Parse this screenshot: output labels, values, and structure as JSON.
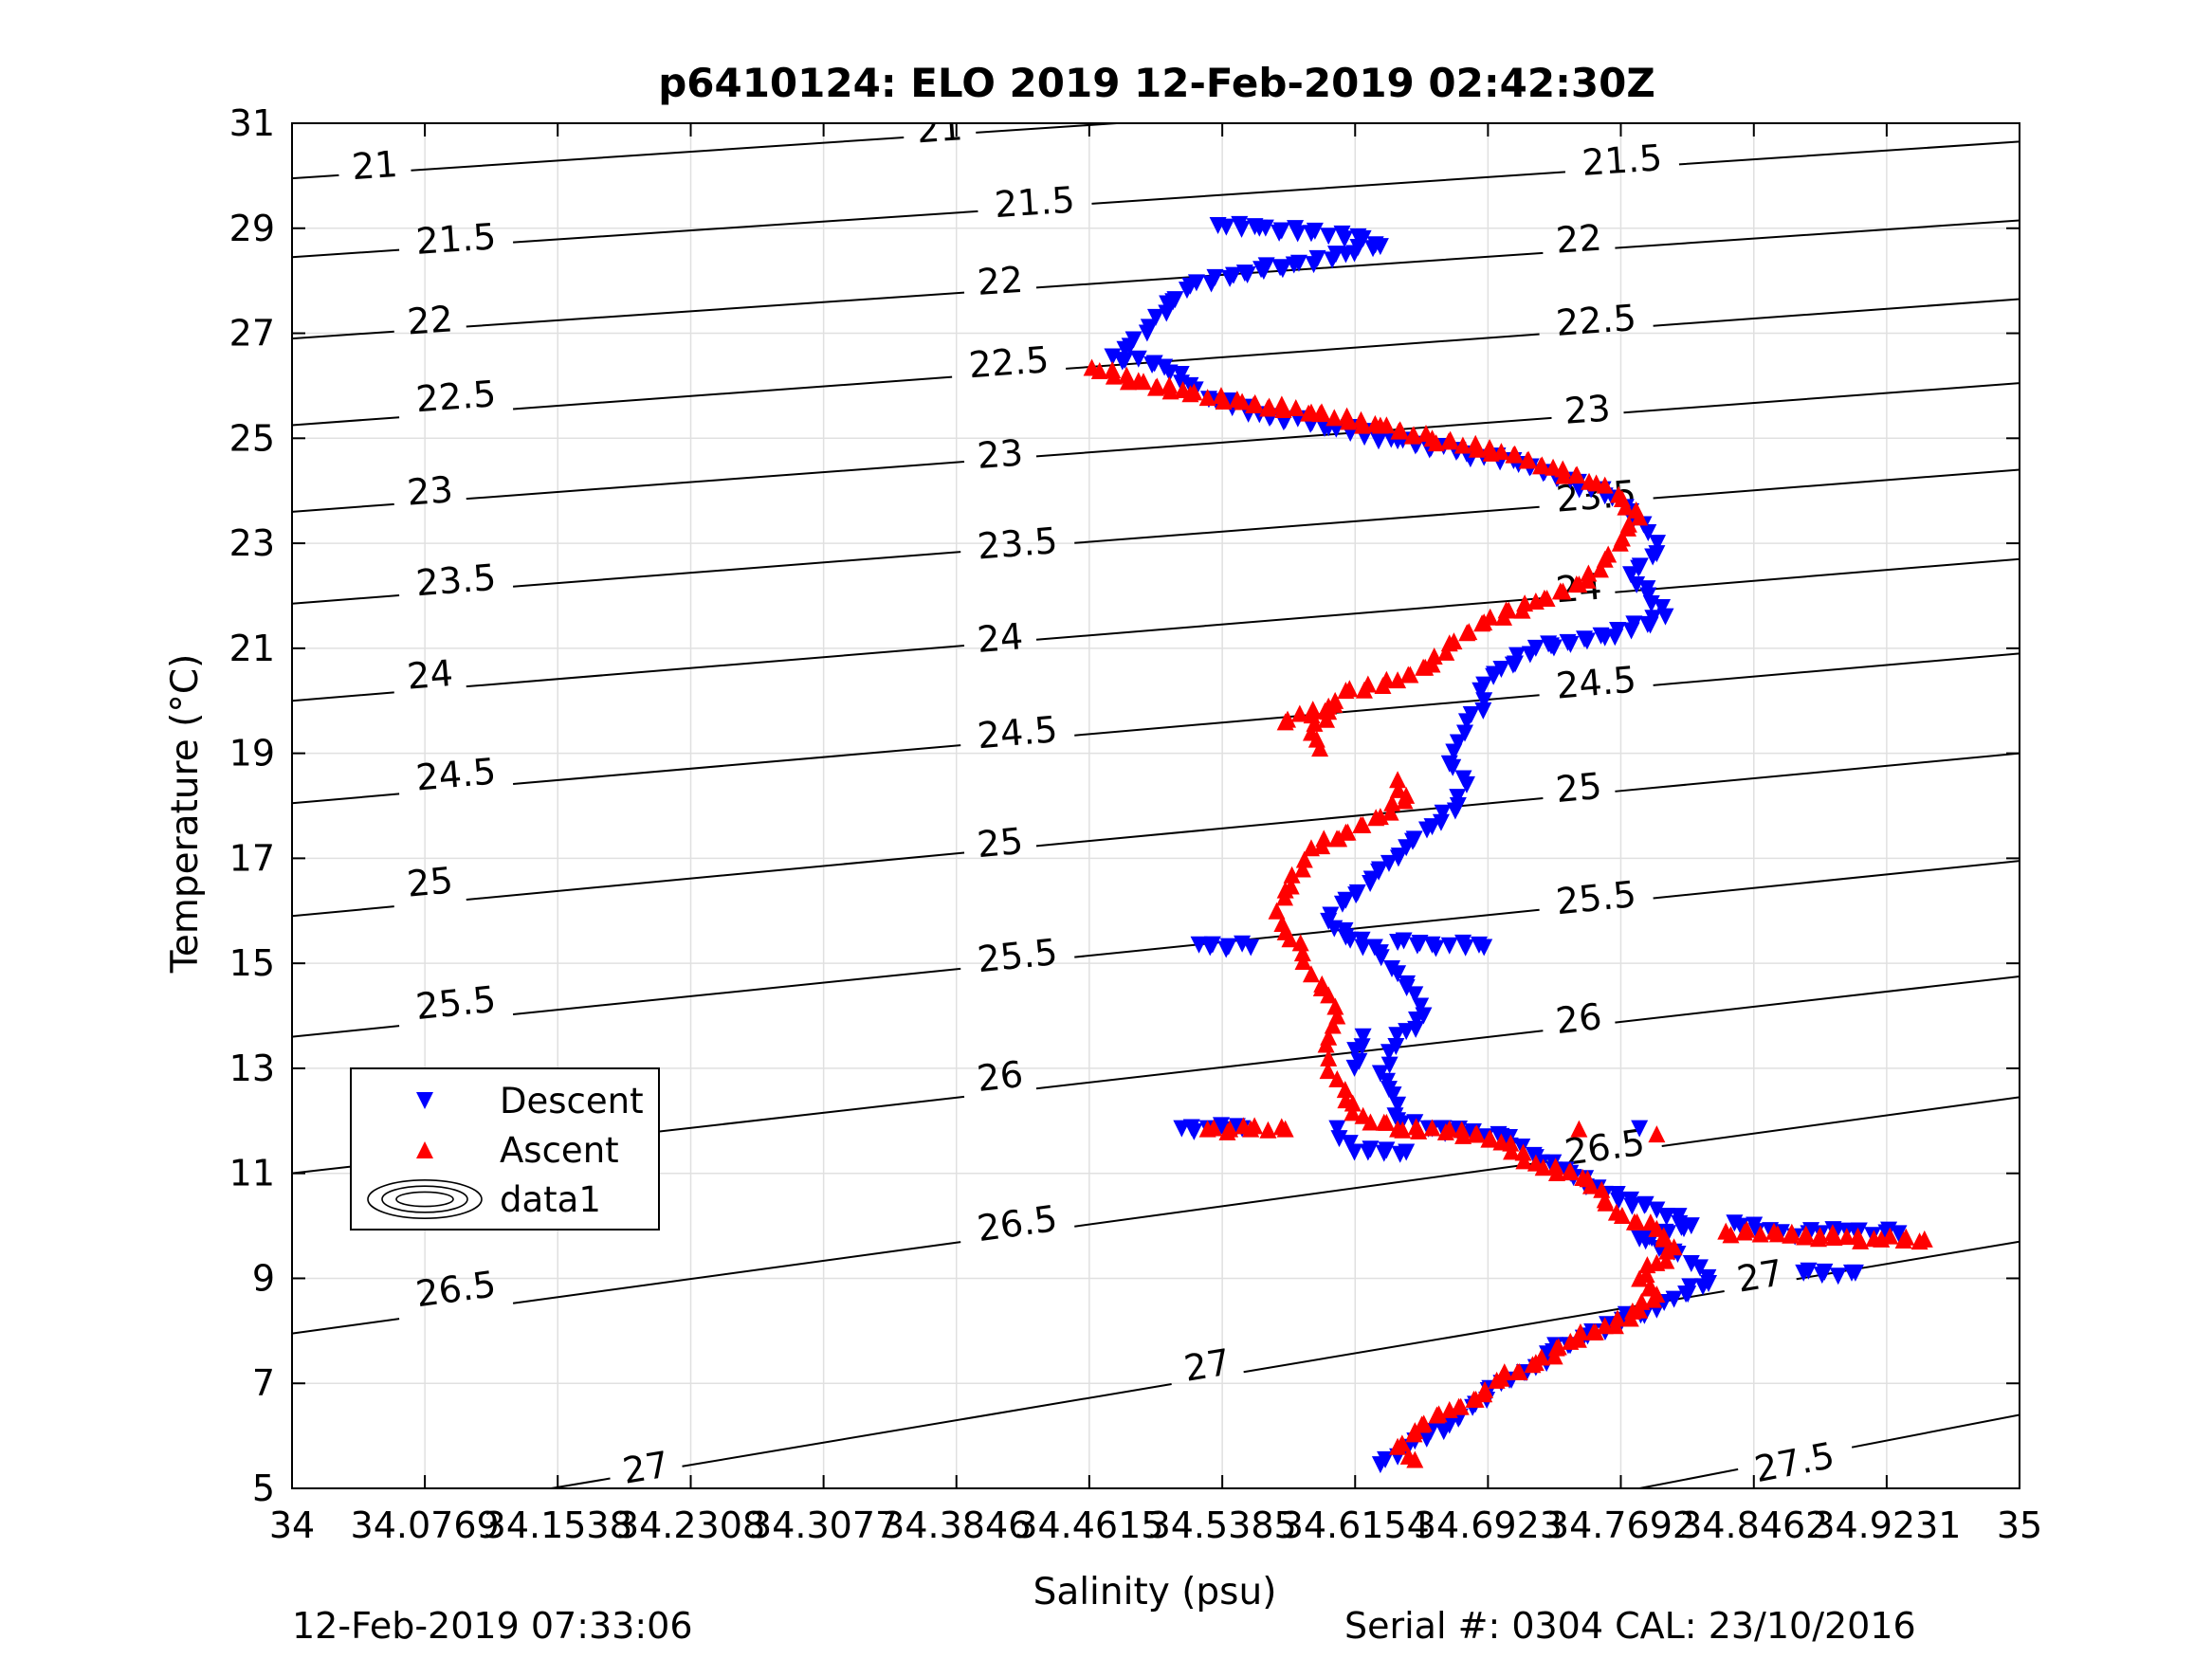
{
  "chart_data": {
    "type": "scatter",
    "title": "p6410124: ELO 2019 12-Feb-2019 02:42:30Z",
    "xlabel": "Salinity (psu)",
    "ylabel": "Temperature (°C)",
    "xlim": [
      34,
      35
    ],
    "ylim": [
      5,
      31
    ],
    "x_ticks": [
      34,
      34.0769,
      34.1538,
      34.2308,
      34.3077,
      34.3846,
      34.4615,
      34.5385,
      34.6154,
      34.6923,
      34.7692,
      34.8462,
      34.9231,
      35
    ],
    "x_tick_labels": [
      "34",
      "34.0769",
      "34.1538",
      "34.2308",
      "34.3077",
      "34.3846",
      "34.4615",
      "34.5385",
      "34.6154",
      "34.6923",
      "34.7692",
      "34.8462",
      "34.9231",
      "35"
    ],
    "y_ticks": [
      5,
      7,
      9,
      11,
      13,
      15,
      17,
      19,
      21,
      23,
      25,
      27,
      29,
      31
    ],
    "y_tick_labels": [
      "5",
      "7",
      "9",
      "11",
      "13",
      "15",
      "17",
      "19",
      "21",
      "23",
      "25",
      "27",
      "29",
      "31"
    ],
    "grid": true,
    "legend_position": "left",
    "legend": [
      "Descent",
      "Ascent",
      "data1"
    ],
    "colors": {
      "descent": "#0000ff",
      "ascent": "#ff0000",
      "contour": "#000000",
      "grid": "#e0e0e0"
    },
    "series": [
      {
        "name": "Descent",
        "marker": "triangle-down",
        "points": [
          [
            34.536,
            29.05
          ],
          [
            34.56,
            29.0
          ],
          [
            34.59,
            28.9
          ],
          [
            34.62,
            28.8
          ],
          [
            34.63,
            28.65
          ],
          [
            34.61,
            28.5
          ],
          [
            34.58,
            28.3
          ],
          [
            34.545,
            28.1
          ],
          [
            34.52,
            27.9
          ],
          [
            34.51,
            27.6
          ],
          [
            34.5,
            27.3
          ],
          [
            34.495,
            27.0
          ],
          [
            34.485,
            26.75
          ],
          [
            34.475,
            26.55
          ],
          [
            34.505,
            26.35
          ],
          [
            34.52,
            26.0
          ],
          [
            34.535,
            25.7
          ],
          [
            34.56,
            25.45
          ],
          [
            34.6,
            25.2
          ],
          [
            34.64,
            24.95
          ],
          [
            34.68,
            24.7
          ],
          [
            34.71,
            24.5
          ],
          [
            34.74,
            24.2
          ],
          [
            34.76,
            23.9
          ],
          [
            34.775,
            23.6
          ],
          [
            34.785,
            23.2
          ],
          [
            34.79,
            22.8
          ],
          [
            34.775,
            22.4
          ],
          [
            34.785,
            22.0
          ],
          [
            34.795,
            21.6
          ],
          [
            34.76,
            21.2
          ],
          [
            34.72,
            21.0
          ],
          [
            34.7,
            20.6
          ],
          [
            34.69,
            20.3
          ],
          [
            34.69,
            20.0
          ],
          [
            34.68,
            19.6
          ],
          [
            34.675,
            19.2
          ],
          [
            34.67,
            18.8
          ],
          [
            34.68,
            18.4
          ],
          [
            34.675,
            18.0
          ],
          [
            34.66,
            17.6
          ],
          [
            34.645,
            17.2
          ],
          [
            34.635,
            16.9
          ],
          [
            34.625,
            16.6
          ],
          [
            34.61,
            16.2
          ],
          [
            34.6,
            15.8
          ],
          [
            34.61,
            15.5
          ],
          [
            34.63,
            15.2
          ],
          [
            34.64,
            14.8
          ],
          [
            34.65,
            14.4
          ],
          [
            34.655,
            14.0
          ],
          [
            34.645,
            13.7
          ],
          [
            34.635,
            13.3
          ],
          [
            34.63,
            12.9
          ],
          [
            34.635,
            12.6
          ],
          [
            34.64,
            12.3
          ],
          [
            34.64,
            12.0
          ],
          [
            34.66,
            11.85
          ],
          [
            34.7,
            11.7
          ],
          [
            34.72,
            11.3
          ],
          [
            34.74,
            11.0
          ],
          [
            34.76,
            10.6
          ],
          [
            34.79,
            10.3
          ],
          [
            34.81,
            10.0
          ],
          [
            34.78,
            9.75
          ],
          [
            34.8,
            9.5
          ],
          [
            34.815,
            9.2
          ],
          [
            34.82,
            8.9
          ],
          [
            34.8,
            8.6
          ],
          [
            34.79,
            8.4
          ],
          [
            34.77,
            8.2
          ],
          [
            34.75,
            7.9
          ],
          [
            34.73,
            7.6
          ],
          [
            34.72,
            7.3
          ],
          [
            34.7,
            7.0
          ],
          [
            34.685,
            6.6
          ],
          [
            34.67,
            6.2
          ],
          [
            34.65,
            5.9
          ],
          [
            34.64,
            5.6
          ],
          [
            34.63,
            5.45
          ],
          [
            34.525,
            15.35
          ],
          [
            34.555,
            15.3
          ],
          [
            34.64,
            15.4
          ],
          [
            34.66,
            15.35
          ],
          [
            34.69,
            15.3
          ],
          [
            34.515,
            11.85
          ],
          [
            34.55,
            11.85
          ],
          [
            34.605,
            11.85
          ],
          [
            34.615,
            11.4
          ],
          [
            34.645,
            11.4
          ],
          [
            34.78,
            11.85
          ],
          [
            34.835,
            10.05
          ],
          [
            34.86,
            9.85
          ],
          [
            34.885,
            9.85
          ],
          [
            34.9,
            9.9
          ],
          [
            34.93,
            9.85
          ],
          [
            34.875,
            9.1
          ],
          [
            34.905,
            9.1
          ],
          [
            34.615,
            13.0
          ],
          [
            34.62,
            13.6
          ]
        ]
      },
      {
        "name": "Ascent",
        "marker": "triangle-up",
        "points": [
          [
            34.463,
            26.35
          ],
          [
            34.49,
            26.1
          ],
          [
            34.52,
            25.85
          ],
          [
            34.55,
            25.7
          ],
          [
            34.59,
            25.5
          ],
          [
            34.63,
            25.25
          ],
          [
            34.66,
            25.0
          ],
          [
            34.7,
            24.75
          ],
          [
            34.73,
            24.45
          ],
          [
            34.755,
            24.15
          ],
          [
            34.77,
            23.85
          ],
          [
            34.78,
            23.5
          ],
          [
            34.77,
            23.1
          ],
          [
            34.76,
            22.7
          ],
          [
            34.75,
            22.3
          ],
          [
            34.72,
            21.9
          ],
          [
            34.69,
            21.5
          ],
          [
            34.67,
            21.1
          ],
          [
            34.66,
            20.7
          ],
          [
            34.64,
            20.4
          ],
          [
            34.61,
            20.2
          ],
          [
            34.6,
            19.8
          ],
          [
            34.59,
            19.4
          ],
          [
            34.595,
            19.1
          ],
          [
            34.64,
            18.5
          ],
          [
            34.645,
            18.2
          ],
          [
            34.63,
            17.8
          ],
          [
            34.61,
            17.5
          ],
          [
            34.59,
            17.2
          ],
          [
            34.585,
            16.8
          ],
          [
            34.575,
            16.4
          ],
          [
            34.57,
            16.0
          ],
          [
            34.575,
            15.6
          ],
          [
            34.585,
            15.2
          ],
          [
            34.59,
            14.8
          ],
          [
            34.6,
            14.4
          ],
          [
            34.605,
            14.0
          ],
          [
            34.6,
            13.6
          ],
          [
            34.6,
            13.2
          ],
          [
            34.605,
            12.8
          ],
          [
            34.61,
            12.4
          ],
          [
            34.62,
            12.1
          ],
          [
            34.64,
            11.85
          ],
          [
            34.67,
            11.85
          ],
          [
            34.7,
            11.6
          ],
          [
            34.72,
            11.2
          ],
          [
            34.75,
            10.9
          ],
          [
            34.76,
            10.5
          ],
          [
            34.77,
            10.2
          ],
          [
            34.79,
            9.95
          ],
          [
            34.8,
            9.6
          ],
          [
            34.79,
            9.3
          ],
          [
            34.78,
            9.0
          ],
          [
            34.79,
            8.7
          ],
          [
            34.78,
            8.4
          ],
          [
            34.76,
            8.1
          ],
          [
            34.74,
            7.8
          ],
          [
            34.72,
            7.4
          ],
          [
            34.7,
            7.1
          ],
          [
            34.69,
            6.8
          ],
          [
            34.67,
            6.5
          ],
          [
            34.65,
            6.1
          ],
          [
            34.64,
            5.8
          ],
          [
            34.65,
            5.55
          ],
          [
            34.53,
            11.85
          ],
          [
            34.555,
            11.85
          ],
          [
            34.575,
            11.85
          ],
          [
            34.745,
            11.85
          ],
          [
            34.79,
            11.75
          ],
          [
            34.83,
            9.9
          ],
          [
            34.86,
            9.85
          ],
          [
            34.9,
            9.8
          ],
          [
            34.92,
            9.75
          ],
          [
            34.945,
            9.75
          ],
          [
            34.575,
            19.6
          ],
          [
            34.6,
            19.9
          ]
        ]
      }
    ],
    "density_contours": [
      {
        "label": "21",
        "x": [
          34,
          34.5
        ],
        "y": [
          29.95,
          31.05
        ],
        "labels_at": [
          [
            34.048,
            30.15
          ],
          [
            34.375,
            30.85
          ]
        ]
      },
      {
        "label": "21.5",
        "x": [
          34,
          35
        ],
        "y": [
          28.45,
          30.65
        ],
        "labels_at": [
          [
            34.095,
            28.75
          ],
          [
            34.43,
            29.45
          ],
          [
            34.77,
            30.25
          ]
        ]
      },
      {
        "label": "22",
        "x": [
          34,
          35
        ],
        "y": [
          26.9,
          29.15
        ],
        "labels_at": [
          [
            34.08,
            27.2
          ],
          [
            34.41,
            27.95
          ],
          [
            34.745,
            28.75
          ]
        ]
      },
      {
        "label": "22.5",
        "x": [
          34,
          35
        ],
        "y": [
          25.25,
          27.65
        ],
        "labels_at": [
          [
            34.095,
            25.75
          ],
          [
            34.415,
            26.4
          ],
          [
            34.755,
            27.2
          ]
        ]
      },
      {
        "label": "23",
        "x": [
          34,
          35
        ],
        "y": [
          23.6,
          26.05
        ],
        "labels_at": [
          [
            34.08,
            23.95
          ],
          [
            34.41,
            24.65
          ],
          [
            34.75,
            25.5
          ]
        ]
      },
      {
        "label": "23.5",
        "x": [
          34,
          35
        ],
        "y": [
          21.85,
          24.4
        ],
        "labels_at": [
          [
            34.095,
            22.25
          ],
          [
            34.42,
            22.95
          ],
          [
            34.755,
            23.85
          ]
        ]
      },
      {
        "label": "24",
        "x": [
          34,
          35
        ],
        "y": [
          20.0,
          22.7
        ],
        "labels_at": [
          [
            34.08,
            20.45
          ],
          [
            34.41,
            21.15
          ],
          [
            34.745,
            22.1
          ]
        ]
      },
      {
        "label": "24.5",
        "x": [
          34,
          35
        ],
        "y": [
          18.05,
          20.9
        ],
        "labels_at": [
          [
            34.095,
            18.55
          ],
          [
            34.42,
            19.35
          ],
          [
            34.755,
            20.3
          ]
        ]
      },
      {
        "label": "25",
        "x": [
          34,
          35
        ],
        "y": [
          15.9,
          19.0
        ],
        "labels_at": [
          [
            34.08,
            16.5
          ],
          [
            34.41,
            17.25
          ],
          [
            34.745,
            18.3
          ]
        ]
      },
      {
        "label": "25.5",
        "x": [
          34,
          35
        ],
        "y": [
          13.6,
          16.95
        ],
        "labels_at": [
          [
            34.095,
            14.2
          ],
          [
            34.42,
            15.1
          ],
          [
            34.755,
            16.2
          ]
        ]
      },
      {
        "label": "26",
        "x": [
          34,
          35
        ],
        "y": [
          11.0,
          14.75
        ],
        "labels_at": [
          [
            34.08,
            11.8
          ],
          [
            34.41,
            12.8
          ],
          [
            34.745,
            13.9
          ]
        ]
      },
      {
        "label": "26.5",
        "x": [
          34,
          35
        ],
        "y": [
          7.95,
          12.45
        ],
        "labels_at": [
          [
            34.095,
            8.75
          ],
          [
            34.42,
            10.0
          ],
          [
            34.76,
            11.45
          ]
        ]
      },
      {
        "label": "27",
        "x": [
          34.15,
          35
        ],
        "y": [
          5.0,
          9.7
        ],
        "labels_at": [
          [
            34.205,
            5.35
          ],
          [
            34.53,
            7.3
          ],
          [
            34.85,
            9.0
          ]
        ]
      },
      {
        "label": "27.5",
        "x": [
          34.78,
          35
        ],
        "y": [
          5.0,
          6.4
        ],
        "labels_at": [
          [
            34.87,
            5.45
          ]
        ]
      }
    ]
  },
  "footer": {
    "timestamp": "12-Feb-2019 07:33:06",
    "serial": "Serial #: 0304  CAL: 23/10/2016"
  }
}
